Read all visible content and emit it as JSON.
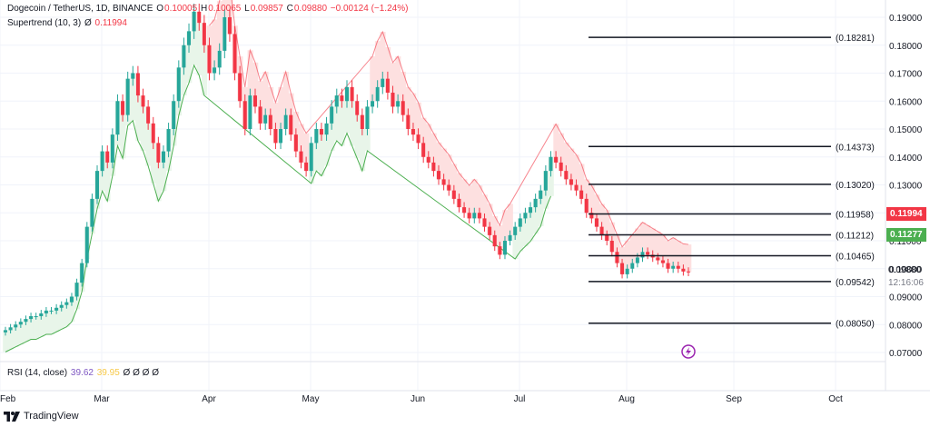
{
  "legend": {
    "symbol": "Dogecoin / TetherUS, 1D, BINANCE",
    "open_label": "O",
    "open": "0.10005",
    "high_label": "H",
    "high": "0.10065",
    "low_label": "L",
    "low": "0.09857",
    "close_label": "C",
    "close": "0.09880",
    "change": "−0.00124 (−1.24%)",
    "indicator": "Supertrend (10, 3)",
    "indicator_value_label": "Ø",
    "indicator_value": "0.11994"
  },
  "rsi": {
    "label": "RSI (14, close)",
    "value1": "39.62",
    "value2": "39.95",
    "placeholders": "Ø Ø Ø Ø"
  },
  "price_axis_labels": [
    "0.19000",
    "0.18000",
    "0.17000",
    "0.16000",
    "0.15000",
    "0.14000",
    "0.13000",
    "0.12000",
    "0.11000",
    "0.10000",
    "0.09000",
    "0.08000",
    "0.07000"
  ],
  "time_axis_labels": [
    "Feb",
    "Mar",
    "Apr",
    "May",
    "Jun",
    "Jul",
    "Aug",
    "Sep",
    "Oct"
  ],
  "fib_levels": [
    {
      "label": "(0.18281)",
      "value": 0.18281
    },
    {
      "label": "(0.14373)",
      "value": 0.14373
    },
    {
      "label": "(0.13020)",
      "value": 0.1302
    },
    {
      "label": "(0.11958)",
      "value": 0.11958
    },
    {
      "label": "(0.11212)",
      "value": 0.11212
    },
    {
      "label": "(0.10465)",
      "value": 0.10465
    },
    {
      "label": "(0.09542)",
      "value": 0.09542
    },
    {
      "label": "(0.08050)",
      "value": 0.0805
    }
  ],
  "price_tags": {
    "supertrend": {
      "text": "0.11994",
      "color": "#f23645"
    },
    "green": {
      "text": "0.11277",
      "color": "#4caf50"
    },
    "last_price": "0.09880",
    "countdown": "12:16:06"
  },
  "footer": {
    "brand": "TradingView"
  },
  "colors": {
    "up": "#26a69a",
    "down": "#f23645",
    "st_up_fill": "#e8f5e9",
    "st_down_fill": "#fde0e0"
  },
  "chart_data": {
    "type": "candlestick",
    "title": "Dogecoin / TetherUS, 1D, BINANCE",
    "y_axis_range": [
      0.065,
      0.195
    ],
    "x_month_ticks": [
      "Feb",
      "Mar",
      "Apr",
      "May",
      "Jun",
      "Jul",
      "Aug",
      "Sep",
      "Oct"
    ],
    "close_series": [
      0.078,
      0.079,
      0.08,
      0.081,
      0.082,
      0.083,
      0.083,
      0.084,
      0.085,
      0.085,
      0.086,
      0.087,
      0.088,
      0.09,
      0.095,
      0.102,
      0.115,
      0.125,
      0.135,
      0.142,
      0.138,
      0.148,
      0.16,
      0.155,
      0.168,
      0.17,
      0.162,
      0.158,
      0.152,
      0.145,
      0.138,
      0.142,
      0.15,
      0.16,
      0.172,
      0.18,
      0.185,
      0.192,
      0.188,
      0.18,
      0.17,
      0.172,
      0.178,
      0.19,
      0.184,
      0.17,
      0.16,
      0.15,
      0.162,
      0.158,
      0.152,
      0.155,
      0.15,
      0.145,
      0.15,
      0.155,
      0.148,
      0.142,
      0.138,
      0.135,
      0.145,
      0.15,
      0.148,
      0.152,
      0.158,
      0.162,
      0.16,
      0.165,
      0.16,
      0.155,
      0.15,
      0.158,
      0.16,
      0.165,
      0.168,
      0.163,
      0.158,
      0.16,
      0.155,
      0.15,
      0.148,
      0.145,
      0.14,
      0.138,
      0.135,
      0.132,
      0.13,
      0.128,
      0.125,
      0.122,
      0.12,
      0.118,
      0.12,
      0.118,
      0.115,
      0.112,
      0.108,
      0.105,
      0.11,
      0.112,
      0.115,
      0.118,
      0.12,
      0.122,
      0.125,
      0.128,
      0.135,
      0.14,
      0.138,
      0.135,
      0.132,
      0.13,
      0.128,
      0.125,
      0.12,
      0.118,
      0.115,
      0.112,
      0.11,
      0.106,
      0.102,
      0.098,
      0.1,
      0.102,
      0.104,
      0.106,
      0.105,
      0.104,
      0.103,
      0.102,
      0.1,
      0.101,
      0.1,
      0.099,
      0.0988
    ],
    "supertrend_value": 0.11994
  }
}
